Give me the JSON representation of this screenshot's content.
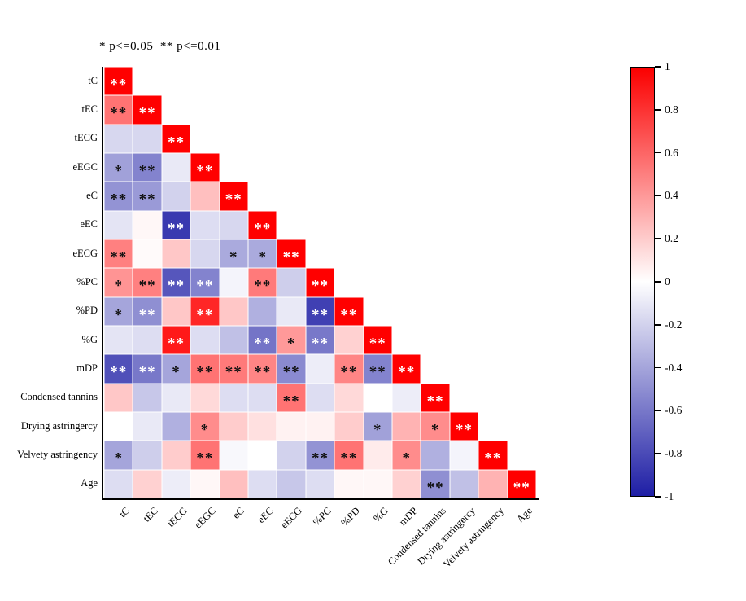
{
  "chart_data": {
    "type": "heatmap",
    "subtype": "lower-triangle-correlation-matrix",
    "title": "* p<=0.05  ** p<=0.01",
    "significance_note": {
      "single_star": "p<=0.05",
      "double_star": "p<=0.01"
    },
    "variables": [
      "tC",
      "tEC",
      "tECG",
      "eEGC",
      "eC",
      "eEC",
      "eECG",
      "%PC",
      "%PD",
      "%G",
      "mDP",
      "Condensed tannins",
      "Drying astringercy",
      "Velvety astringency",
      "Age"
    ],
    "legend_position": "right",
    "value_range": [
      -1,
      1
    ],
    "rows": [
      [
        [
          1,
          "**",
          "w"
        ]
      ],
      [
        [
          0.55,
          "**",
          "b"
        ],
        [
          1,
          "**",
          "w"
        ]
      ],
      [
        [
          -0.18,
          "",
          ""
        ],
        [
          -0.18,
          "",
          ""
        ],
        [
          1,
          "**",
          "w"
        ]
      ],
      [
        [
          -0.42,
          "*",
          "b"
        ],
        [
          -0.55,
          "**",
          "b"
        ],
        [
          -0.1,
          "",
          ""
        ],
        [
          1,
          "**",
          "w"
        ]
      ],
      [
        [
          -0.48,
          "**",
          "b"
        ],
        [
          -0.45,
          "**",
          "b"
        ],
        [
          -0.2,
          "",
          ""
        ],
        [
          0.25,
          "",
          ""
        ],
        [
          1,
          "**",
          "w"
        ]
      ],
      [
        [
          -0.12,
          "",
          ""
        ],
        [
          0.03,
          "",
          ""
        ],
        [
          -0.88,
          "**",
          "w"
        ],
        [
          -0.15,
          "",
          ""
        ],
        [
          -0.18,
          "",
          ""
        ],
        [
          1,
          "**",
          "w"
        ]
      ],
      [
        [
          0.5,
          "**",
          "b"
        ],
        [
          0.02,
          "",
          ""
        ],
        [
          0.22,
          "",
          ""
        ],
        [
          -0.18,
          "",
          ""
        ],
        [
          -0.38,
          "*",
          "b"
        ],
        [
          -0.38,
          "*",
          "b"
        ],
        [
          1,
          "**",
          "w"
        ]
      ],
      [
        [
          0.42,
          "*",
          "b"
        ],
        [
          0.5,
          "**",
          "b"
        ],
        [
          -0.75,
          "**",
          "w"
        ],
        [
          -0.55,
          "**",
          "w"
        ],
        [
          -0.05,
          "",
          ""
        ],
        [
          0.52,
          "**",
          "b"
        ],
        [
          -0.22,
          "",
          ""
        ],
        [
          1,
          "**",
          "w"
        ]
      ],
      [
        [
          -0.4,
          "*",
          "b"
        ],
        [
          -0.5,
          "**",
          "w"
        ],
        [
          0.22,
          "",
          ""
        ],
        [
          0.85,
          "**",
          "w"
        ],
        [
          0.22,
          "",
          ""
        ],
        [
          -0.35,
          "",
          ""
        ],
        [
          -0.1,
          "",
          ""
        ],
        [
          -0.85,
          "**",
          "w"
        ],
        [
          1,
          "**",
          "w"
        ]
      ],
      [
        [
          -0.12,
          "",
          ""
        ],
        [
          -0.15,
          "",
          ""
        ],
        [
          0.9,
          "**",
          "w"
        ],
        [
          -0.15,
          "",
          ""
        ],
        [
          -0.28,
          "",
          ""
        ],
        [
          -0.62,
          "**",
          "w"
        ],
        [
          0.4,
          "*",
          "b"
        ],
        [
          -0.6,
          "**",
          "w"
        ],
        [
          0.18,
          "",
          ""
        ],
        [
          1,
          "**",
          "w"
        ]
      ],
      [
        [
          -0.78,
          "**",
          "w"
        ],
        [
          -0.6,
          "**",
          "w"
        ],
        [
          -0.4,
          "*",
          "b"
        ],
        [
          0.55,
          "**",
          "b"
        ],
        [
          0.52,
          "**",
          "b"
        ],
        [
          0.48,
          "**",
          "b"
        ],
        [
          -0.52,
          "**",
          "b"
        ],
        [
          -0.08,
          "",
          ""
        ],
        [
          0.48,
          "**",
          "b"
        ],
        [
          -0.55,
          "**",
          "b"
        ],
        [
          1,
          "**",
          "w"
        ]
      ],
      [
        [
          0.22,
          "",
          ""
        ],
        [
          -0.25,
          "",
          ""
        ],
        [
          -0.1,
          "",
          ""
        ],
        [
          0.15,
          "",
          ""
        ],
        [
          -0.15,
          "",
          ""
        ],
        [
          -0.15,
          "",
          ""
        ],
        [
          0.55,
          "**",
          "b"
        ],
        [
          -0.15,
          "",
          ""
        ],
        [
          0.15,
          "",
          ""
        ],
        [
          0,
          "",
          ""
        ],
        [
          -0.08,
          "",
          ""
        ],
        [
          1,
          "**",
          "w"
        ]
      ],
      [
        [
          0,
          "",
          ""
        ],
        [
          -0.1,
          "",
          ""
        ],
        [
          -0.35,
          "",
          ""
        ],
        [
          0.45,
          "*",
          "b"
        ],
        [
          0.2,
          "",
          ""
        ],
        [
          0.12,
          "",
          ""
        ],
        [
          0.05,
          "",
          ""
        ],
        [
          0.05,
          "",
          ""
        ],
        [
          0.2,
          "",
          ""
        ],
        [
          -0.42,
          "*",
          "b"
        ],
        [
          0.3,
          "",
          ""
        ],
        [
          0.45,
          "*",
          "b"
        ],
        [
          1,
          "**",
          "w"
        ]
      ],
      [
        [
          -0.4,
          "*",
          "b"
        ],
        [
          -0.22,
          "",
          ""
        ],
        [
          0.2,
          "",
          ""
        ],
        [
          0.55,
          "**",
          "b"
        ],
        [
          -0.03,
          "",
          ""
        ],
        [
          0,
          "",
          ""
        ],
        [
          -0.2,
          "",
          ""
        ],
        [
          -0.48,
          "**",
          "b"
        ],
        [
          0.55,
          "**",
          "b"
        ],
        [
          0.08,
          "",
          ""
        ],
        [
          0.45,
          "*",
          "b"
        ],
        [
          -0.35,
          "",
          ""
        ],
        [
          -0.05,
          "",
          ""
        ],
        [
          1,
          "**",
          "w"
        ]
      ],
      [
        [
          -0.15,
          "",
          ""
        ],
        [
          0.18,
          "",
          ""
        ],
        [
          -0.08,
          "",
          ""
        ],
        [
          0.03,
          "",
          ""
        ],
        [
          0.25,
          "",
          ""
        ],
        [
          -0.15,
          "",
          ""
        ],
        [
          -0.25,
          "",
          ""
        ],
        [
          -0.15,
          "",
          ""
        ],
        [
          0.03,
          "",
          ""
        ],
        [
          0.03,
          "",
          ""
        ],
        [
          0.18,
          "",
          ""
        ],
        [
          -0.5,
          "**",
          "b"
        ],
        [
          -0.28,
          "",
          ""
        ],
        [
          0.3,
          "",
          ""
        ],
        [
          1,
          "**",
          "w"
        ]
      ]
    ],
    "colorbar": {
      "tick_labels": [
        "1",
        "0.8",
        "0.6",
        "0.4",
        "0.2",
        "0",
        "-0.2",
        "-0.4",
        "-0.6",
        "-0.8",
        "-1"
      ],
      "top_color": "#fb0000",
      "mid_color": "#ffffff",
      "bottom_color": "#1e1ea5"
    },
    "star_colors": {
      "w": "#ffffff",
      "b": "#111111"
    }
  }
}
